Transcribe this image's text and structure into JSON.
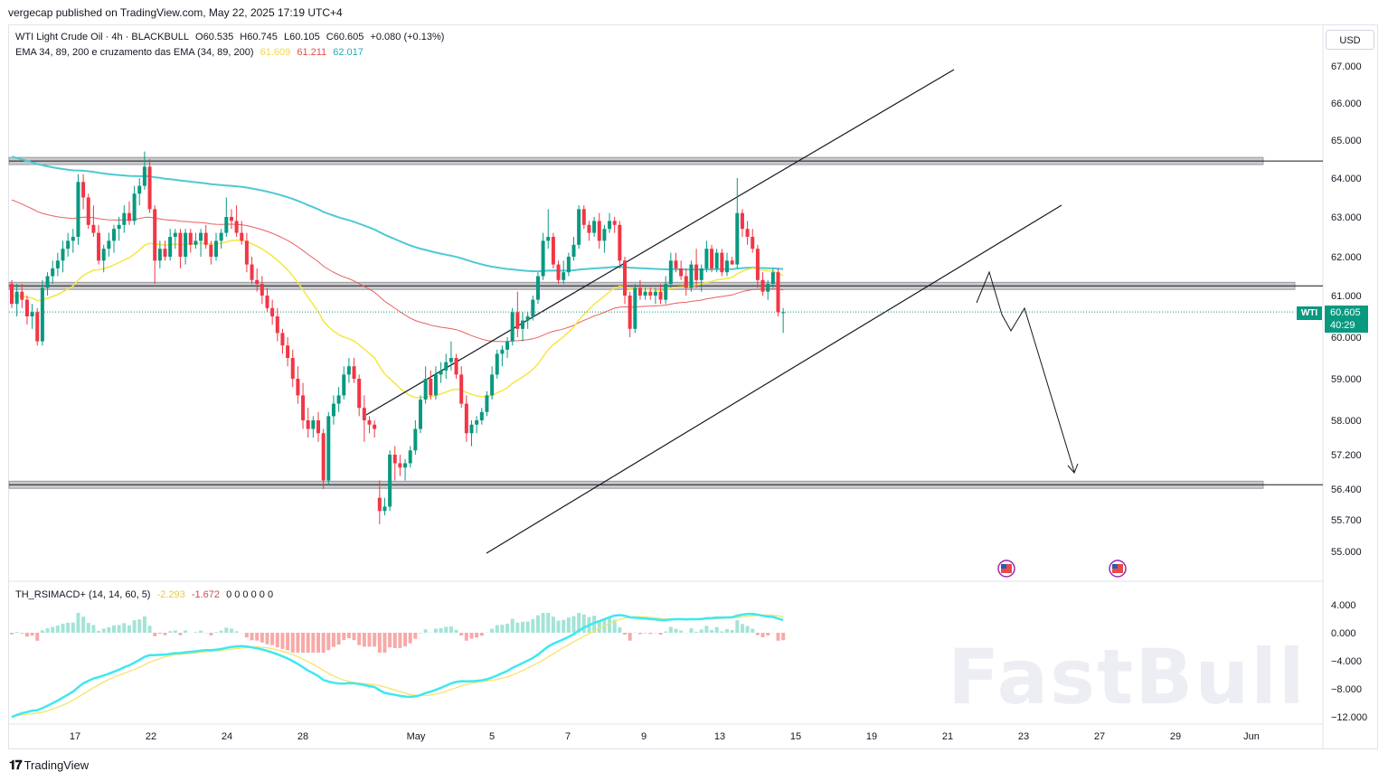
{
  "header": {
    "published": "vergecap published on TradingView.com, May 22, 2025 17:19 UTC+4"
  },
  "legend": {
    "symbol": "WTI Light Crude Oil · 4h · BLACKBULL",
    "open": "O60.535",
    "high": "H60.745",
    "low": "L60.105",
    "close": "C60.605",
    "change": "+0.080 (+0.13%)",
    "ema_label": "EMA 34, 89, 200 e cruzamento das EMA (34, 89, 200)",
    "ema34_value": "61.609",
    "ema89_value": "61.211",
    "ema200_value": "62.017",
    "osc_label": "TH_RSIMACD+ (14, 14, 60, 5)",
    "osc_value1": "-2.293",
    "osc_value2": "-1.672",
    "osc_zeros": "0 0 0 0 0 0"
  },
  "currency": "USD",
  "price_tag": {
    "symbol": "WTI",
    "price": "60.605",
    "countdown": "40:29"
  },
  "colors": {
    "up": "#089981",
    "down": "#f23645",
    "ema34": "#f5e642",
    "ema89": "#e8605f",
    "ema200": "#4dc9d4",
    "support": "#a6a6a6",
    "osc_cyan": "#3ee8f0",
    "osc_yellow": "#f7e36a"
  },
  "icons": [
    "flag-us-icon",
    "flag-us-icon"
  ],
  "chart_data": {
    "type": "candlestick",
    "timeframe": "4h",
    "y_axis": {
      "ticks": [
        "67.000",
        "66.000",
        "65.000",
        "64.000",
        "63.000",
        "62.000",
        "61.000",
        "60.000",
        "59.000",
        "58.000",
        "57.200",
        "56.400",
        "55.700",
        "55.000"
      ]
    },
    "osc_axis": {
      "ticks": [
        "4.000",
        "0.000",
        "−4.000",
        "−8.000",
        "−12.000"
      ]
    },
    "x_axis": {
      "ticks": [
        "17",
        "22",
        "24",
        "28",
        "May",
        "5",
        "7",
        "9",
        "13",
        "15",
        "19",
        "21",
        "23",
        "27",
        "29",
        "Jun"
      ]
    },
    "last_price": 60.605,
    "horizontal_levels": [
      64.45,
      61.25,
      56.5
    ],
    "candles": [
      [
        61.3,
        61.4,
        60.7,
        60.8
      ],
      [
        60.8,
        61.3,
        60.5,
        61.1
      ],
      [
        61.1,
        61.3,
        60.7,
        60.9
      ],
      [
        60.9,
        61.0,
        60.3,
        60.5
      ],
      [
        60.5,
        60.8,
        60.2,
        60.6
      ],
      [
        60.6,
        60.7,
        59.8,
        59.9
      ],
      [
        59.9,
        61.4,
        59.8,
        61.2
      ],
      [
        61.2,
        61.6,
        61.0,
        61.5
      ],
      [
        61.5,
        61.9,
        61.3,
        61.7
      ],
      [
        61.7,
        62.1,
        61.5,
        61.9
      ],
      [
        61.9,
        62.4,
        61.6,
        62.2
      ],
      [
        62.2,
        62.6,
        62.0,
        62.4
      ],
      [
        62.4,
        62.7,
        62.1,
        62.5
      ],
      [
        62.5,
        64.1,
        62.3,
        63.9
      ],
      [
        63.9,
        64.1,
        63.2,
        63.5
      ],
      [
        63.5,
        63.6,
        62.7,
        62.8
      ],
      [
        62.8,
        63.3,
        62.5,
        62.6
      ],
      [
        62.6,
        62.8,
        61.8,
        61.9
      ],
      [
        61.9,
        62.3,
        61.6,
        62.2
      ],
      [
        62.2,
        62.6,
        62.0,
        62.4
      ],
      [
        62.4,
        62.8,
        62.1,
        62.7
      ],
      [
        62.7,
        63.0,
        62.4,
        62.8
      ],
      [
        62.8,
        63.3,
        62.6,
        63.1
      ],
      [
        63.1,
        63.4,
        62.8,
        62.9
      ],
      [
        62.9,
        63.8,
        62.8,
        63.6
      ],
      [
        63.6,
        64.0,
        63.3,
        63.8
      ],
      [
        63.8,
        64.7,
        63.7,
        64.3
      ],
      [
        64.3,
        64.5,
        63.1,
        63.2
      ],
      [
        63.2,
        63.3,
        61.3,
        61.9
      ],
      [
        61.9,
        62.4,
        61.7,
        62.2
      ],
      [
        62.2,
        62.4,
        61.9,
        62.0
      ],
      [
        62.0,
        62.7,
        61.9,
        62.5
      ],
      [
        62.5,
        62.7,
        62.2,
        62.6
      ],
      [
        62.6,
        62.7,
        61.7,
        62.0
      ],
      [
        62.0,
        62.7,
        61.8,
        62.6
      ],
      [
        62.6,
        62.7,
        62.1,
        62.3
      ],
      [
        62.3,
        62.6,
        62.2,
        62.4
      ],
      [
        62.4,
        62.7,
        62.0,
        62.6
      ],
      [
        62.6,
        62.8,
        62.2,
        62.3
      ],
      [
        62.3,
        62.4,
        61.8,
        62.0
      ],
      [
        62.0,
        62.6,
        61.9,
        62.4
      ],
      [
        62.4,
        62.7,
        62.2,
        62.6
      ],
      [
        62.6,
        63.5,
        62.5,
        63.0
      ],
      [
        63.0,
        63.2,
        62.7,
        62.9
      ],
      [
        62.9,
        63.3,
        62.5,
        62.6
      ],
      [
        62.6,
        62.9,
        62.3,
        62.4
      ],
      [
        62.4,
        62.6,
        61.6,
        61.8
      ],
      [
        61.8,
        62.0,
        61.3,
        61.4
      ],
      [
        61.4,
        61.7,
        61.1,
        61.3
      ],
      [
        61.3,
        61.5,
        60.8,
        61.0
      ],
      [
        61.0,
        61.2,
        60.6,
        60.7
      ],
      [
        60.7,
        60.9,
        60.3,
        60.5
      ],
      [
        60.5,
        60.7,
        59.9,
        60.1
      ],
      [
        60.1,
        60.2,
        59.6,
        59.8
      ],
      [
        59.8,
        60.0,
        59.3,
        59.5
      ],
      [
        59.5,
        59.7,
        58.8,
        59.0
      ],
      [
        59.0,
        59.3,
        58.4,
        58.6
      ],
      [
        58.6,
        58.9,
        57.8,
        58.0
      ],
      [
        58.0,
        58.3,
        57.6,
        57.8
      ],
      [
        57.8,
        58.1,
        57.6,
        58.0
      ],
      [
        58.0,
        58.2,
        57.5,
        57.7
      ],
      [
        57.7,
        57.8,
        56.4,
        56.6
      ],
      [
        56.6,
        58.2,
        56.5,
        58.1
      ],
      [
        58.1,
        58.6,
        57.9,
        58.4
      ],
      [
        58.4,
        58.8,
        58.2,
        58.6
      ],
      [
        58.6,
        59.3,
        58.5,
        59.1
      ],
      [
        59.1,
        59.5,
        58.9,
        59.3
      ],
      [
        59.3,
        59.5,
        58.9,
        59.0
      ],
      [
        59.0,
        59.1,
        58.1,
        58.3
      ],
      [
        58.3,
        58.6,
        57.5,
        58.0
      ],
      [
        58.0,
        58.1,
        57.7,
        57.9
      ],
      [
        57.9,
        58.0,
        57.6,
        57.8
      ],
      [
        56.2,
        56.6,
        55.6,
        55.9
      ],
      [
        55.9,
        56.2,
        55.8,
        56.0
      ],
      [
        56.0,
        57.3,
        55.9,
        57.2
      ],
      [
        57.2,
        57.4,
        56.6,
        57.0
      ],
      [
        57.0,
        57.2,
        56.7,
        56.9
      ],
      [
        56.9,
        57.1,
        56.6,
        57.0
      ],
      [
        57.0,
        57.4,
        56.9,
        57.3
      ],
      [
        57.3,
        58.0,
        57.2,
        57.8
      ],
      [
        57.8,
        58.6,
        57.7,
        58.5
      ],
      [
        58.5,
        59.3,
        58.4,
        59.0
      ],
      [
        59.0,
        59.2,
        58.5,
        58.6
      ],
      [
        58.6,
        59.3,
        58.5,
        59.1
      ],
      [
        59.1,
        59.4,
        58.9,
        59.2
      ],
      [
        59.2,
        59.6,
        59.0,
        59.4
      ],
      [
        59.4,
        59.9,
        59.2,
        59.5
      ],
      [
        59.5,
        59.6,
        59.0,
        59.1
      ],
      [
        59.1,
        59.3,
        58.3,
        58.4
      ],
      [
        58.4,
        58.6,
        57.5,
        57.7
      ],
      [
        57.7,
        58.0,
        57.4,
        57.9
      ],
      [
        57.9,
        58.1,
        57.7,
        58.0
      ],
      [
        58.0,
        58.3,
        57.9,
        58.2
      ],
      [
        58.2,
        58.7,
        58.1,
        58.6
      ],
      [
        58.6,
        59.3,
        58.5,
        59.1
      ],
      [
        59.1,
        59.7,
        59.0,
        59.6
      ],
      [
        59.6,
        59.8,
        59.3,
        59.7
      ],
      [
        59.7,
        60.0,
        59.5,
        59.9
      ],
      [
        59.9,
        60.7,
        59.8,
        60.6
      ],
      [
        60.6,
        61.1,
        60.0,
        60.2
      ],
      [
        60.2,
        60.6,
        59.9,
        60.4
      ],
      [
        60.4,
        60.6,
        60.2,
        60.5
      ],
      [
        60.5,
        61.0,
        60.4,
        60.9
      ],
      [
        60.9,
        61.6,
        60.8,
        61.5
      ],
      [
        61.5,
        62.6,
        61.4,
        62.4
      ],
      [
        62.4,
        63.2,
        62.2,
        62.5
      ],
      [
        62.5,
        62.6,
        61.7,
        61.8
      ],
      [
        61.8,
        61.9,
        61.3,
        61.4
      ],
      [
        61.4,
        61.9,
        61.3,
        61.6
      ],
      [
        61.6,
        62.1,
        61.5,
        62.0
      ],
      [
        62.0,
        62.5,
        61.9,
        62.3
      ],
      [
        62.3,
        63.3,
        62.2,
        63.2
      ],
      [
        63.2,
        63.3,
        62.7,
        62.8
      ],
      [
        62.8,
        62.9,
        62.4,
        62.6
      ],
      [
        62.6,
        63.0,
        62.5,
        62.9
      ],
      [
        62.9,
        63.1,
        62.2,
        62.4
      ],
      [
        62.4,
        62.8,
        62.1,
        62.7
      ],
      [
        62.7,
        63.1,
        62.6,
        62.9
      ],
      [
        62.9,
        63.0,
        62.6,
        62.8
      ],
      [
        62.8,
        62.9,
        61.7,
        61.9
      ],
      [
        61.9,
        62.0,
        60.8,
        61.0
      ],
      [
        61.0,
        61.1,
        60.0,
        60.2
      ],
      [
        60.2,
        61.3,
        60.1,
        61.2
      ],
      [
        61.2,
        61.4,
        60.9,
        61.0
      ],
      [
        61.0,
        61.2,
        60.9,
        61.1
      ],
      [
        61.1,
        61.2,
        60.9,
        61.0
      ],
      [
        61.0,
        61.2,
        60.8,
        61.1
      ],
      [
        61.1,
        61.3,
        60.8,
        60.9
      ],
      [
        60.9,
        61.5,
        60.8,
        61.3
      ],
      [
        61.3,
        62.1,
        61.2,
        61.9
      ],
      [
        61.9,
        62.1,
        61.6,
        61.7
      ],
      [
        61.7,
        61.9,
        61.4,
        61.5
      ],
      [
        61.5,
        61.7,
        61.0,
        61.2
      ],
      [
        61.2,
        61.9,
        61.1,
        61.8
      ],
      [
        61.8,
        62.2,
        61.2,
        61.4
      ],
      [
        61.4,
        61.8,
        61.1,
        61.7
      ],
      [
        61.7,
        62.4,
        61.6,
        62.2
      ],
      [
        62.2,
        62.3,
        61.6,
        61.7
      ],
      [
        61.7,
        62.2,
        61.6,
        62.1
      ],
      [
        62.1,
        62.2,
        61.5,
        61.6
      ],
      [
        61.6,
        62.1,
        61.5,
        61.9
      ],
      [
        61.9,
        62.0,
        61.8,
        61.8
      ],
      [
        61.8,
        64.0,
        61.7,
        63.1
      ],
      [
        63.1,
        63.2,
        62.5,
        62.7
      ],
      [
        62.7,
        62.9,
        62.3,
        62.5
      ],
      [
        62.5,
        62.7,
        62.1,
        62.2
      ],
      [
        62.2,
        62.3,
        61.2,
        61.4
      ],
      [
        61.4,
        61.6,
        61.0,
        61.1
      ],
      [
        61.1,
        61.4,
        60.9,
        61.3
      ],
      [
        61.3,
        61.7,
        61.2,
        61.6
      ],
      [
        61.6,
        61.7,
        60.5,
        60.6
      ],
      [
        60.6,
        60.7,
        60.1,
        60.6
      ]
    ]
  }
}
